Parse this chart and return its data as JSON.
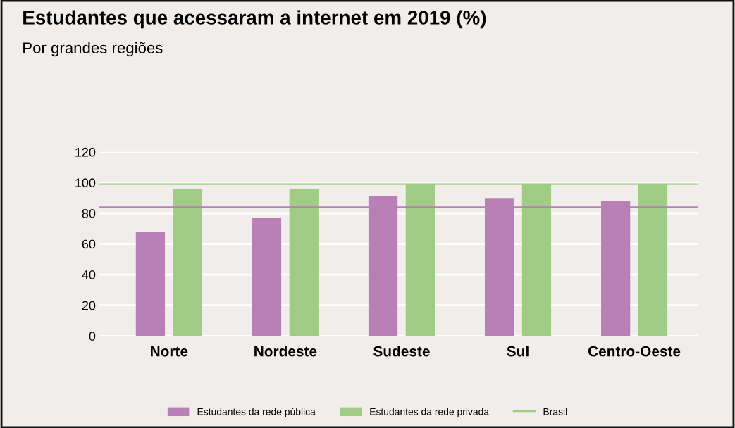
{
  "chart_data": {
    "type": "bar",
    "title": "Estudantes que acessaram a internet em 2019 (%)",
    "subtitle": "Por grandes regiões",
    "categories": [
      "Norte",
      "Nordeste",
      "Sudeste",
      "Sul",
      "Centro-Oeste"
    ],
    "series": [
      {
        "name": "Estudantes da rede pública",
        "color": "#b97fb7",
        "values": [
          68,
          77,
          91,
          90,
          88
        ]
      },
      {
        "name": "Estudantes da rede privada",
        "color": "#a0cc86",
        "values": [
          96,
          96,
          99,
          99,
          99
        ]
      }
    ],
    "ref_lines": [
      {
        "axis": "y",
        "value": 99,
        "label": "Brasil",
        "color": "#a0cc86"
      },
      {
        "axis": "y",
        "value": 84,
        "color": "#b97fb7"
      }
    ],
    "ylim": [
      0,
      120
    ],
    "yticks": [
      0,
      20,
      40,
      60,
      80,
      100,
      120
    ],
    "grid": "y",
    "legend": "bottom"
  }
}
